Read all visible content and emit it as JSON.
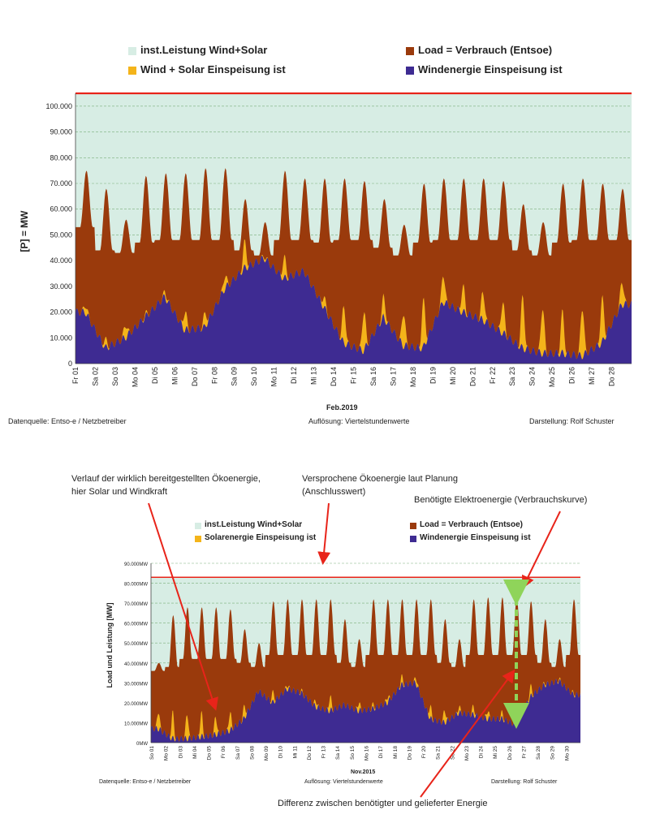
{
  "colors": {
    "installed": "#d7ede4",
    "load": "#9a3a0c",
    "solar": "#f4b41a",
    "wind": "#3e2b92",
    "limit_line": "#e8241a",
    "grid": "#7bb07b",
    "arrow": "#e8241a",
    "diff_arrow": "#8fd45a"
  },
  "chart1": {
    "legend": {
      "installed": "inst.Leistung Wind+Solar",
      "load": "Load =  Verbrauch (Entsoe)",
      "solar": "Wind + Solar Einspeisung ist",
      "wind": "Windenergie Einspeisung ist"
    },
    "ylabel": "[P] = MW",
    "xtitle": "Feb.2019",
    "source": "Datenquelle:  Entso-e  / Netzbetreiber",
    "resolution": "Auflösung:  Viertelstundenwerte",
    "author": "Darstellung:  Rolf Schuster"
  },
  "chart2": {
    "legend": {
      "installed": "inst.Leistung Wind+Solar",
      "load": "Load =  Verbrauch (Entsoe)",
      "solar": "Solarenergie Einspeisung ist",
      "wind": "Windenergie Einspeisung ist"
    },
    "ylabel": "Load und Leistung  [MW]",
    "xtitle": "Nov.2015",
    "source": "Datenquelle:  Entso-e  / Netzbetreiber",
    "resolution": "Auflösung:  Viertelstundenwerte",
    "author": "Darstellung:  Rolf Schuster"
  },
  "annotations": {
    "real_energy_line1": "Verlauf der wirklich bereitgestellten Ökoenergie,",
    "real_energy_line2": "hier Solar und Windkraft",
    "promised_line1": "Versprochene Ökoenergie laut Planung",
    "promised_line2": "(Anschlusswert)",
    "required": "Benötigte Elektroenergie (Verbrauchskurve)",
    "difference": "Differenz zwischen benötigter und gelieferter Energie"
  },
  "chart_data": [
    {
      "type": "area",
      "xlabel": "Feb.2019",
      "ylabel": "[P] = MW",
      "ylim": [
        0,
        105000
      ],
      "yticks": [
        "0",
        "10.000",
        "20.000",
        "30.000",
        "40.000",
        "50.000",
        "60.000",
        "70.000",
        "80.000",
        "90.000",
        "100.000"
      ],
      "categories": [
        "Fr 01",
        "Sa 02",
        "So 03",
        "Mo 04",
        "Di 05",
        "Mi 06",
        "Do 07",
        "Fr 08",
        "Sa 09",
        "So 10",
        "Mo 11",
        "Di 12",
        "Mi 13",
        "Do 14",
        "Fr 15",
        "Sa 16",
        "So 17",
        "Mo 18",
        "Di 19",
        "Mi 20",
        "Do 21",
        "Fr 22",
        "Sa 23",
        "So 24",
        "Mo 25",
        "Di 26",
        "Mi 27",
        "Do 28"
      ],
      "installed_capacity": 105000,
      "series": [
        {
          "name": "Load =  Verbrauch (Entsoe)",
          "day_peak": [
            75000,
            68000,
            56000,
            73000,
            74000,
            74000,
            76000,
            76000,
            64000,
            55000,
            75000,
            72000,
            72000,
            72000,
            71000,
            64000,
            54000,
            70000,
            72000,
            72000,
            72000,
            71000,
            62000,
            55000,
            70000,
            72000,
            70000,
            68000
          ],
          "night_low": [
            53000,
            44000,
            43000,
            47000,
            48000,
            48000,
            48000,
            48000,
            44000,
            42000,
            48000,
            48000,
            47000,
            48000,
            48000,
            45000,
            42000,
            47000,
            48000,
            48000,
            48000,
            48000,
            44000,
            42000,
            47000,
            48000,
            48000,
            48000
          ]
        },
        {
          "name": "Wind + Solar Einspeisung ist",
          "day_peak": [
            23000,
            9000,
            15000,
            19000,
            28000,
            20000,
            19000,
            34000,
            47000,
            42000,
            41000,
            33000,
            26000,
            22000,
            20000,
            26000,
            20000,
            24000,
            35000,
            30000,
            28000,
            24000,
            26000,
            22000,
            20000,
            22000,
            25000,
            32000
          ]
        },
        {
          "name": "Windenergie Einspeisung ist",
          "daily_mean": [
            20000,
            6000,
            10000,
            18000,
            26000,
            13000,
            14000,
            29000,
            37000,
            41000,
            33000,
            36000,
            22000,
            8000,
            5000,
            18000,
            7000,
            6000,
            24000,
            20000,
            17000,
            12000,
            6000,
            4000,
            4000,
            3000,
            8000,
            23000
          ]
        }
      ]
    },
    {
      "type": "area",
      "xlabel": "Nov.2015",
      "ylabel": "Load und Leistung  [MW]",
      "ylim": [
        0,
        90000
      ],
      "yticks": [
        "0MW",
        "10.000MW",
        "20.000MW",
        "30.000MW",
        "40.000MW",
        "50.000MW",
        "60.000MW",
        "70.000MW",
        "80.000MW",
        "90.000MW"
      ],
      "categories": [
        "So 01",
        "Mo 02",
        "Di 03",
        "Mi 04",
        "Do 05",
        "Fr 06",
        "Sa 07",
        "So 08",
        "Mo 09",
        "Di 10",
        "Mi 11",
        "Do 12",
        "Fr 13",
        "Sa 14",
        "So 15",
        "Mo 16",
        "Di 17",
        "Mi 18",
        "Do 19",
        "Fr 20",
        "Sa 21",
        "So 22",
        "Mo 23",
        "Di 24",
        "Mi 25",
        "Do 26",
        "Fr 27",
        "Sa 28",
        "So 29",
        "Mo 30"
      ],
      "installed_capacity": 83000,
      "series": [
        {
          "name": "Load =  Verbrauch (Entsoe)",
          "day_peak": [
            40000,
            64000,
            68000,
            68000,
            68000,
            67000,
            57000,
            50000,
            71000,
            72000,
            72000,
            72000,
            72000,
            62000,
            52000,
            72000,
            72000,
            72000,
            72000,
            72000,
            62000,
            52000,
            72000,
            73000,
            73000,
            73000,
            71000,
            62000,
            52000,
            72000
          ],
          "night_low": [
            36000,
            38000,
            42000,
            42000,
            42000,
            42000,
            40000,
            38000,
            44000,
            44000,
            44000,
            44000,
            44000,
            40000,
            38000,
            44000,
            44000,
            44000,
            44000,
            44000,
            40000,
            38000,
            44000,
            44000,
            44000,
            44000,
            44000,
            40000,
            38000,
            44000
          ]
        },
        {
          "name": "Solarenergie Einspeisung ist",
          "day_peak": [
            16000,
            15000,
            15000,
            15000,
            13000,
            15000,
            18000,
            26000,
            25000,
            29000,
            26000,
            21000,
            23000,
            18000,
            20000,
            19000,
            23000,
            33000,
            33000,
            18000,
            16000,
            18000,
            18000,
            16000,
            15000,
            18000,
            28000,
            30000,
            32000,
            25000
          ]
        },
        {
          "name": "Windenergie Einspeisung ist",
          "daily_mean": [
            7000,
            2000,
            2000,
            3000,
            4000,
            6000,
            12000,
            26000,
            20000,
            27000,
            25000,
            18000,
            16000,
            19000,
            16000,
            17000,
            20000,
            29000,
            30000,
            12000,
            10000,
            15000,
            14000,
            12000,
            12000,
            9000,
            23000,
            29000,
            31000,
            24000
          ]
        }
      ]
    }
  ]
}
